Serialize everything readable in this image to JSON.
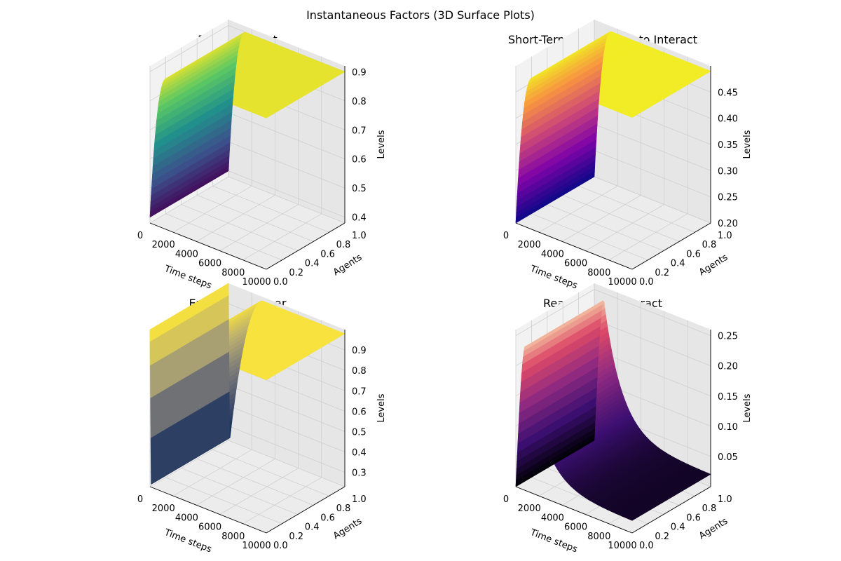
{
  "figure_title": "Instantaneous Factors (3D Surface Plots)",
  "chart_data": [
    {
      "type": "surface3d",
      "title": "Positive Affect",
      "colormap": "viridis",
      "xlabel": "Time steps",
      "ylabel": "Agents",
      "zlabel": "Levels",
      "xlim": [
        0,
        10000
      ],
      "ylim": [
        0,
        1
      ],
      "zlim": [
        0.38,
        0.92
      ],
      "x_ticks": [
        "0",
        "2000",
        "4000",
        "6000",
        "8000",
        "10000"
      ],
      "y_ticks": [
        "0.0",
        "0.2",
        "0.4",
        "0.6",
        "0.8",
        "1.0"
      ],
      "z_ticks": [
        "0.4",
        "0.5",
        "0.6",
        "0.7",
        "0.8",
        "0.9"
      ],
      "z_tick_values": [
        0.4,
        0.5,
        0.6,
        0.7,
        0.8,
        0.9
      ],
      "surface": {
        "z_start": 0.4,
        "z_plateau": 0.9,
        "ramp_end_time": 1500
      }
    },
    {
      "type": "surface3d",
      "title": "Short-Term Willingness to Interact",
      "colormap": "plasma",
      "xlabel": "Time steps",
      "ylabel": "Agents",
      "zlabel": "Levels",
      "xlim": [
        0,
        10000
      ],
      "ylim": [
        0,
        1
      ],
      "zlim": [
        0.2,
        0.5
      ],
      "x_ticks": [
        "0",
        "2000",
        "4000",
        "6000",
        "8000",
        "10000"
      ],
      "y_ticks": [
        "0.0",
        "0.2",
        "0.4",
        "0.6",
        "0.8",
        "1.0"
      ],
      "z_ticks": [
        "0.20",
        "0.25",
        "0.30",
        "0.35",
        "0.40",
        "0.45"
      ],
      "z_tick_values": [
        0.2,
        0.25,
        0.3,
        0.35,
        0.4,
        0.45
      ],
      "surface": {
        "z_start": 0.2,
        "z_plateau": 0.49,
        "ramp_end_time": 1500
      }
    },
    {
      "type": "surface3d",
      "title": "Experienced Fear",
      "colormap": "cividis",
      "xlabel": "Time steps",
      "ylabel": "Agents",
      "zlabel": "Levels",
      "xlim": [
        0,
        10000
      ],
      "ylim": [
        0,
        1
      ],
      "zlim": [
        0.23,
        1.0
      ],
      "x_ticks": [
        "0",
        "2000",
        "4000",
        "6000",
        "8000",
        "10000"
      ],
      "y_ticks": [
        "0.0",
        "0.2",
        "0.4",
        "0.6",
        "0.8",
        "1.0"
      ],
      "z_ticks": [
        "0.3",
        "0.4",
        "0.5",
        "0.6",
        "0.7",
        "0.8",
        "0.9"
      ],
      "z_tick_values": [
        0.3,
        0.4,
        0.5,
        0.6,
        0.7,
        0.8,
        0.9
      ],
      "surface": {
        "z_start": 1.0,
        "z_dip": 0.23,
        "z_plateau": 0.98,
        "dip_time": 100,
        "recover_end_time": 3000
      }
    },
    {
      "type": "surface3d",
      "title": "Readiness to Interact",
      "colormap": "magma",
      "xlabel": "Time steps",
      "ylabel": "Agents",
      "zlabel": "Levels",
      "xlim": [
        0,
        10000
      ],
      "ylim": [
        0,
        1
      ],
      "zlim": [
        0.0,
        0.26
      ],
      "x_ticks": [
        "0",
        "2000",
        "4000",
        "6000",
        "8000",
        "10000"
      ],
      "y_ticks": [
        "0.0",
        "0.2",
        "0.4",
        "0.6",
        "0.8",
        "1.0"
      ],
      "z_ticks": [
        "0.05",
        "0.10",
        "0.15",
        "0.20",
        "0.25"
      ],
      "z_tick_values": [
        0.05,
        0.1,
        0.15,
        0.2,
        0.25
      ],
      "surface": {
        "z_peak": 0.24,
        "z_end": 0.02,
        "peak_time": 800
      }
    }
  ]
}
